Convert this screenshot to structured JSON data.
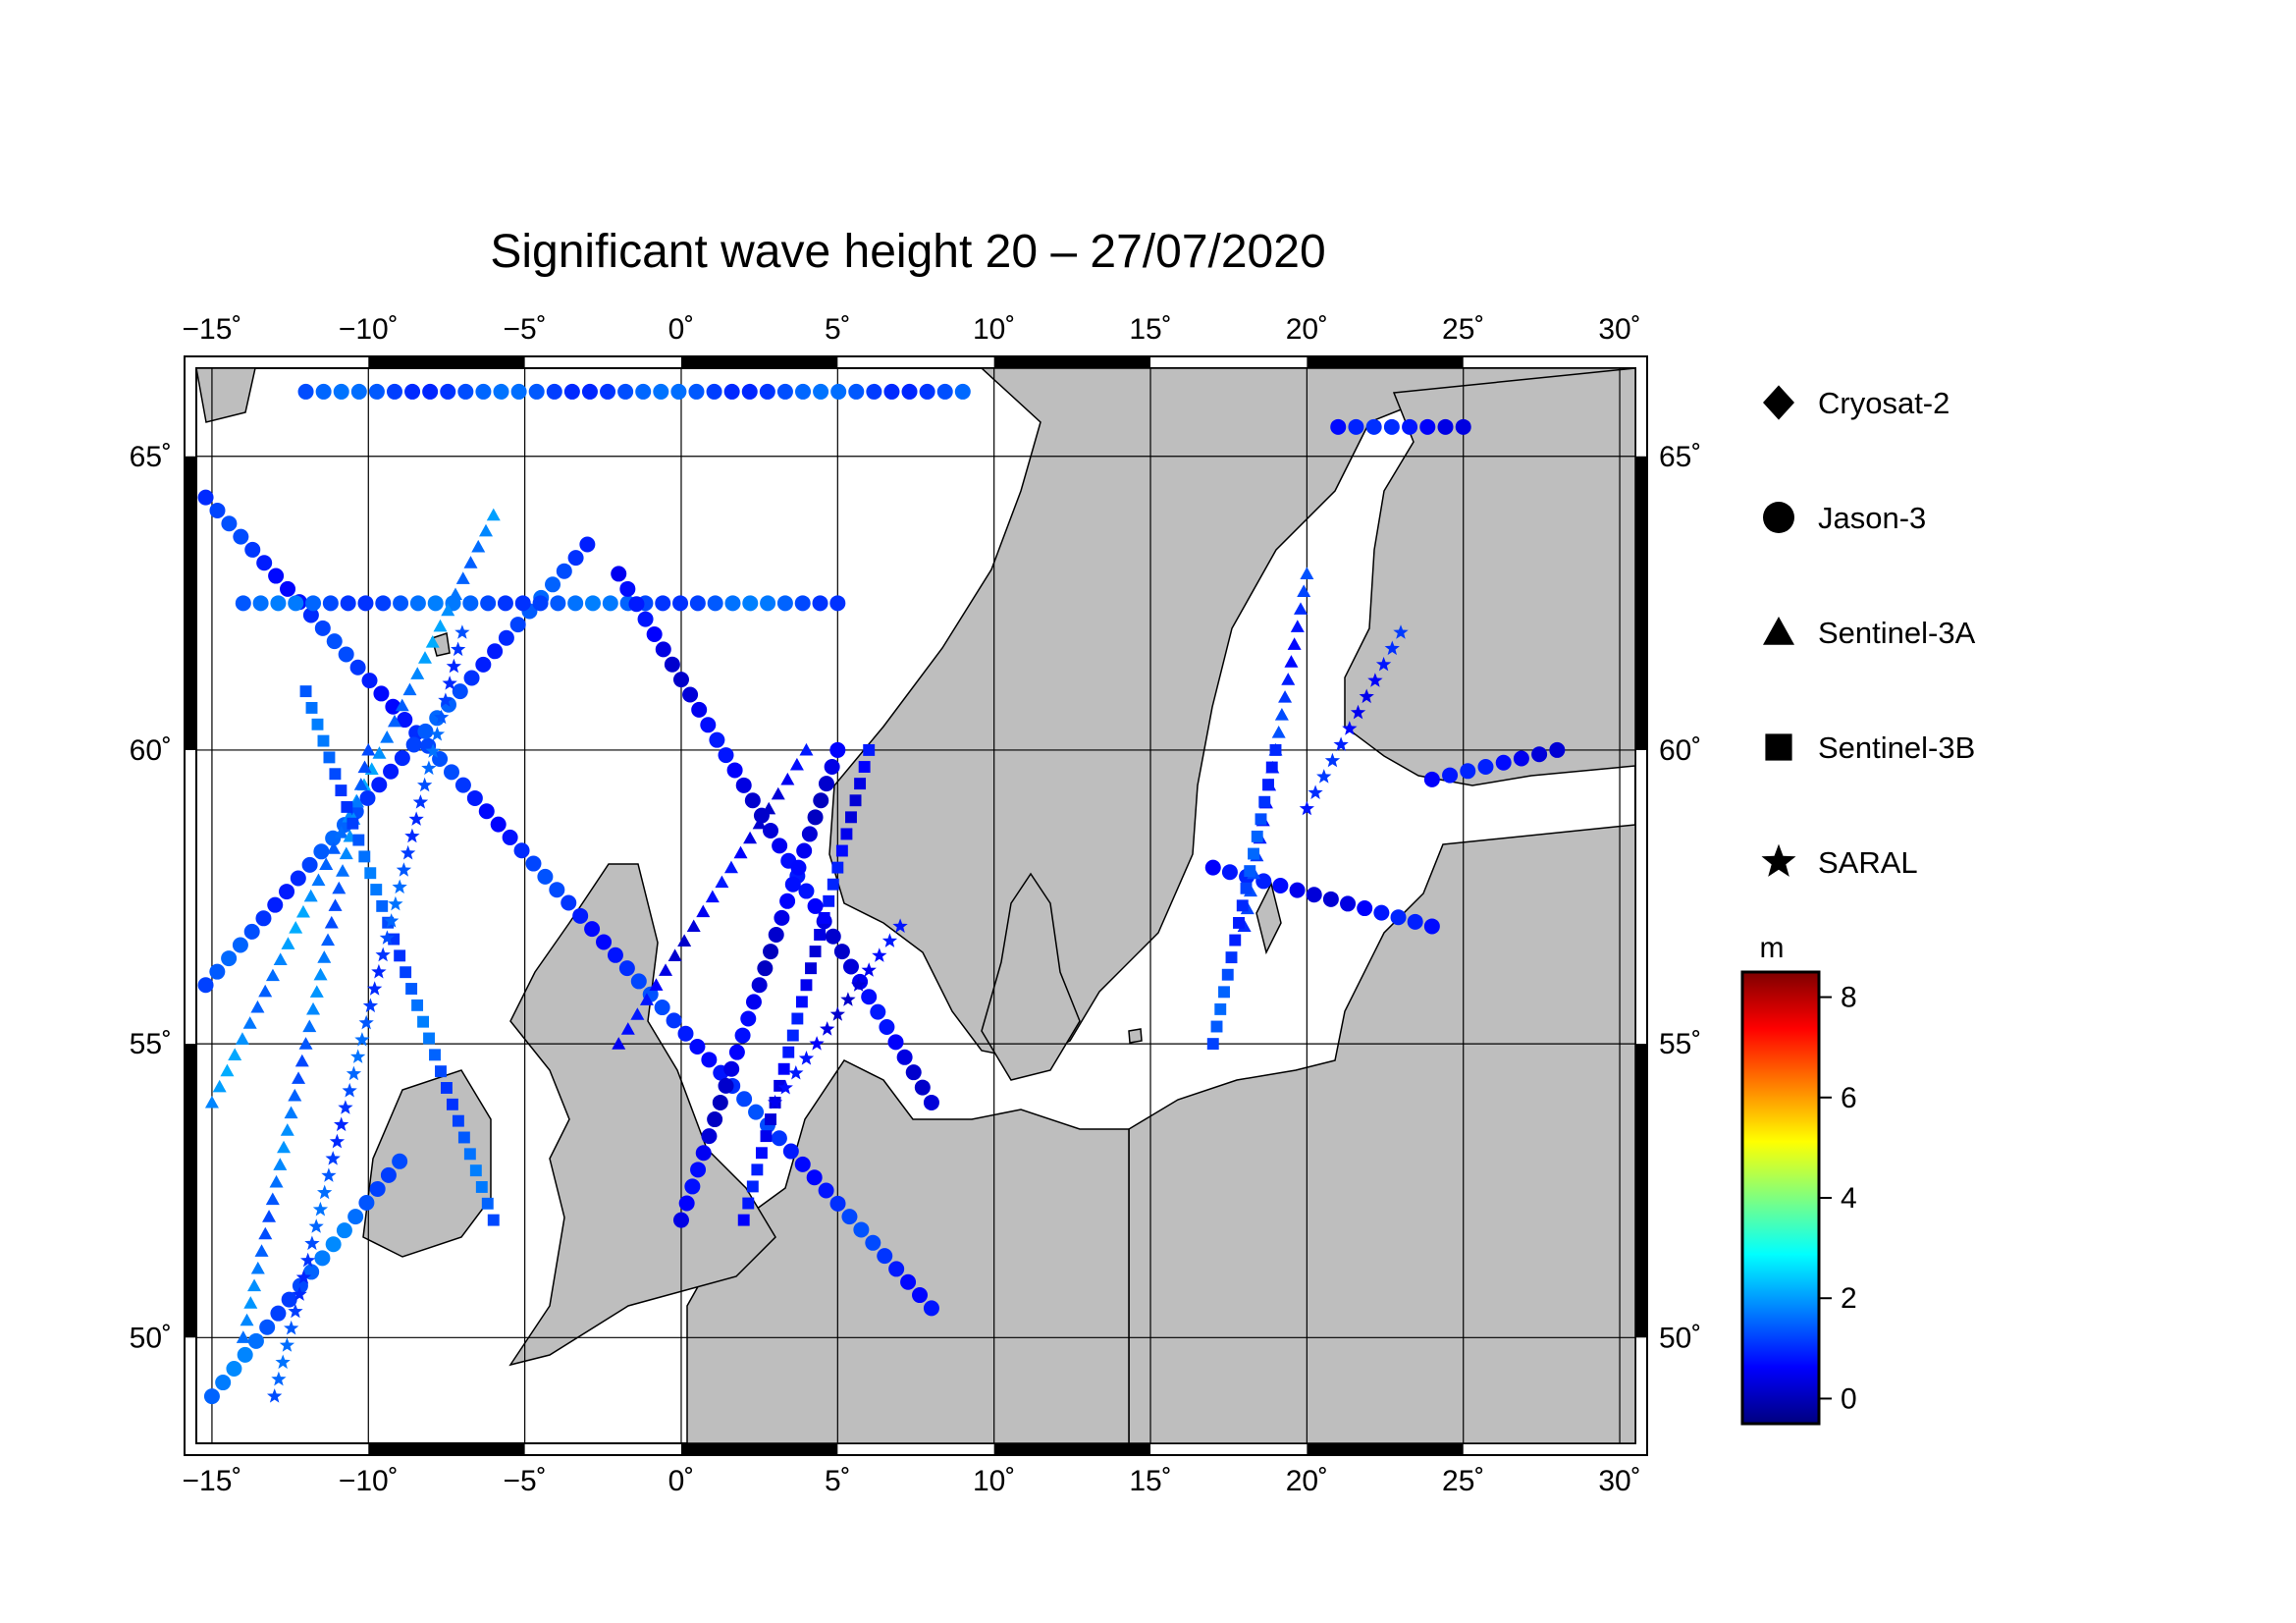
{
  "title": "Significant wave height 20 – 27/07/2020",
  "map": {
    "lon_range": [
      -15.5,
      30.5
    ],
    "lat_range": [
      48.2,
      66.5
    ],
    "lon_ticks": [
      -15,
      -10,
      -5,
      0,
      5,
      10,
      15,
      20,
      25,
      30
    ],
    "lon_tick_labels": [
      "−15˚",
      "−10˚",
      "−5˚",
      "0˚",
      "5˚",
      "10˚",
      "15˚",
      "20˚",
      "25˚",
      "30˚"
    ],
    "lat_ticks": [
      50,
      55,
      60,
      65
    ],
    "lat_tick_labels": [
      "50˚",
      "55˚",
      "60˚",
      "65˚"
    ],
    "grid": true,
    "land_color": "#bebebe",
    "sea_color": "#ffffff"
  },
  "legend": {
    "position": "right",
    "items": [
      {
        "label": "Cryosat-2",
        "symbol": "diamond"
      },
      {
        "label": "Jason-3",
        "symbol": "circle"
      },
      {
        "label": "Sentinel-3A",
        "symbol": "triangle"
      },
      {
        "label": "Sentinel-3B",
        "symbol": "square"
      },
      {
        "label": "SARAL",
        "symbol": "star"
      }
    ]
  },
  "colorbar": {
    "unit": "m",
    "min": -0.5,
    "max": 8.5,
    "ticks": [
      0,
      2,
      4,
      6,
      8
    ],
    "tick_labels": [
      "0",
      "2",
      "4",
      "6",
      "8"
    ],
    "colors": [
      "#00007f",
      "#0000ff",
      "#007fff",
      "#00ffff",
      "#7fff7f",
      "#ffff00",
      "#ff7f00",
      "#ff0000",
      "#7f0000"
    ]
  },
  "chart_data": {
    "type": "scatter",
    "title": "Significant wave height 20 – 27/07/2020",
    "xlabel": "",
    "ylabel": "",
    "xlim": [
      -15.5,
      30.5
    ],
    "ylim": [
      48.2,
      66.5
    ],
    "value_unit": "m",
    "series": [
      {
        "name": "Jason-3",
        "marker": "circle",
        "tracks": [
          {
            "from": [
              -15.2,
              64.3
            ],
            "to": [
              8,
              50.5
            ],
            "swh": 1.0
          },
          {
            "from": [
              -15.2,
              56.0
            ],
            "to": [
              -3,
              63.5
            ],
            "swh": 1.2
          },
          {
            "from": [
              -12,
              66.1
            ],
            "to": [
              9,
              66.1
            ],
            "swh": 1.3
          },
          {
            "from": [
              -14,
              62.5
            ],
            "to": [
              5,
              62.5
            ],
            "swh": 1.4
          },
          {
            "from": [
              -2,
              63
            ],
            "to": [
              8,
              54
            ],
            "swh": 0.5
          },
          {
            "from": [
              0,
              52
            ],
            "to": [
              5,
              60
            ],
            "swh": 0.4
          },
          {
            "from": [
              -15,
              49
            ],
            "to": [
              -9,
              53
            ],
            "swh": 1.5
          },
          {
            "from": [
              21,
              65.5
            ],
            "to": [
              25,
              65.5
            ],
            "swh": 0.7
          },
          {
            "from": [
              17,
              58
            ],
            "to": [
              24,
              57
            ],
            "swh": 0.6
          },
          {
            "from": [
              24,
              59.5
            ],
            "to": [
              28,
              60
            ],
            "swh": 0.6
          }
        ]
      },
      {
        "name": "Sentinel-3A",
        "marker": "triangle",
        "tracks": [
          {
            "from": [
              -15,
              54
            ],
            "to": [
              -6,
              64
            ],
            "swh": 1.8
          },
          {
            "from": [
              -2,
              55
            ],
            "to": [
              4,
              60
            ],
            "swh": 0.5
          },
          {
            "from": [
              -14,
              50
            ],
            "to": [
              -10,
              60
            ],
            "swh": 1.6
          },
          {
            "from": [
              18,
              57
            ],
            "to": [
              20,
              63
            ],
            "swh": 1.0
          }
        ]
      },
      {
        "name": "Sentinel-3B",
        "marker": "square",
        "tracks": [
          {
            "from": [
              -12,
              61
            ],
            "to": [
              -6,
              52
            ],
            "swh": 1.4
          },
          {
            "from": [
              2,
              52
            ],
            "to": [
              6,
              60
            ],
            "swh": 0.6
          },
          {
            "from": [
              17,
              55
            ],
            "to": [
              19,
              60
            ],
            "swh": 1.2
          }
        ]
      },
      {
        "name": "SARAL",
        "marker": "star",
        "tracks": [
          {
            "from": [
              -13,
              49
            ],
            "to": [
              -7,
              62
            ],
            "swh": 1.3
          },
          {
            "from": [
              3,
              54
            ],
            "to": [
              7,
              57
            ],
            "swh": 0.5
          },
          {
            "from": [
              20,
              59
            ],
            "to": [
              23,
              62
            ],
            "swh": 0.8
          }
        ]
      }
    ]
  }
}
